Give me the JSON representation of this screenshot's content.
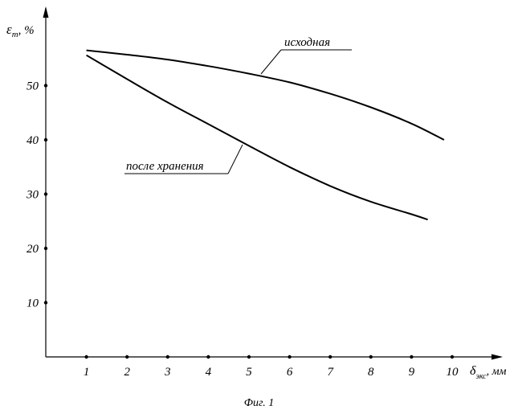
{
  "chart_data": {
    "type": "line",
    "ylabel": {
      "main": "ε",
      "sub": "т",
      "unit": ", %"
    },
    "xlabel": {
      "main": "δ",
      "sub": "экс",
      "unit": ", мм"
    },
    "x_ticks": [
      1,
      2,
      3,
      4,
      5,
      6,
      7,
      8,
      9,
      10
    ],
    "y_ticks": [
      10,
      20,
      30,
      40,
      50
    ],
    "xlim": [
      0,
      10.6
    ],
    "ylim": [
      0,
      60
    ],
    "grid": false,
    "series": [
      {
        "name": "исходная",
        "x": [
          1,
          2,
          3,
          4,
          5,
          6,
          7,
          8,
          9,
          9.8
        ],
        "y": [
          56.5,
          55.7,
          54.8,
          53.6,
          52.2,
          50.6,
          48.5,
          46.0,
          43.0,
          40.0
        ]
      },
      {
        "name": "после хранения",
        "x": [
          1,
          2,
          3,
          4,
          5,
          6,
          7,
          8,
          9,
          9.4
        ],
        "y": [
          55.6,
          51.2,
          46.9,
          42.9,
          38.9,
          35.0,
          31.5,
          28.6,
          26.3,
          25.3
        ]
      }
    ]
  },
  "caption": "Фиг. 1"
}
